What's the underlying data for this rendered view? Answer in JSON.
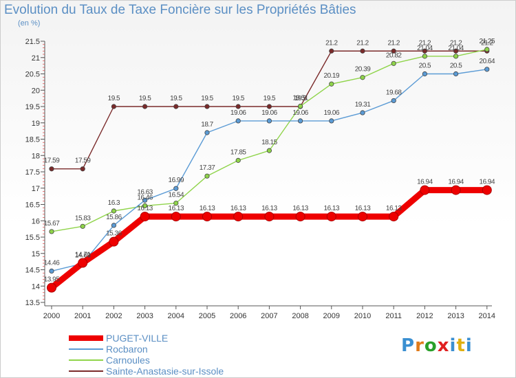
{
  "title": "Evolution du Taux de Taxe Foncière sur les Propriétés Bâties",
  "unit_label": "(en %)",
  "logo": {
    "text": "Proxiti",
    "letters": [
      "P",
      "r",
      "o",
      "x",
      "i",
      "t",
      "i"
    ],
    "colors": [
      "#3a8fd1",
      "#e07b1a",
      "#2aa02a",
      "#e02020",
      "#3a8fd1",
      "#e0b010",
      "#3a8fd1"
    ]
  },
  "chart_data": {
    "type": "line",
    "categories": [
      "2000",
      "2001",
      "2002",
      "2003",
      "2004",
      "2005",
      "2006",
      "2007",
      "2008",
      "2009",
      "2010",
      "2011",
      "2012",
      "2013",
      "2014"
    ],
    "ylim": [
      13.5,
      21.5
    ],
    "yticks": [
      "13.5",
      "14",
      "14.5",
      "15",
      "15.5",
      "16",
      "16.5",
      "17",
      "17.5",
      "18",
      "18.5",
      "19",
      "19.5",
      "20",
      "20.5",
      "21",
      "21.5"
    ],
    "grid": false,
    "legend_position": "bottom-left",
    "series": [
      {
        "name": "PUGET-VILLE",
        "color": "#ee0000",
        "values": [
          13.95,
          14.71,
          15.36,
          16.13,
          16.13,
          16.13,
          16.13,
          16.13,
          16.13,
          16.13,
          16.13,
          16.13,
          16.94,
          16.94,
          16.94
        ],
        "labels": [
          "13.95",
          "14.71",
          "15.36",
          "16.13",
          "16.13",
          "16.13",
          "16.13",
          "16.13",
          "16.13",
          "16.13",
          "16.13",
          "16.13",
          "16.94",
          "16.94",
          "16.94"
        ]
      },
      {
        "name": "Rocbaron",
        "color": "#5b9bd5",
        "values": [
          14.46,
          14.69,
          15.86,
          16.63,
          16.99,
          18.7,
          19.06,
          19.06,
          19.06,
          19.06,
          19.31,
          19.68,
          20.5,
          20.5,
          20.64
        ],
        "labels": [
          "14.46",
          "14.69",
          "15.86",
          "16.63",
          "16.99",
          "18.7",
          "19.06",
          "19.06",
          "19.06",
          "19.06",
          "19.31",
          "19.68",
          "20.5",
          "20.5",
          "20.64"
        ]
      },
      {
        "name": "Carnoules",
        "color": "#8fd44a",
        "values": [
          15.67,
          15.83,
          16.3,
          16.46,
          16.54,
          17.37,
          17.85,
          18.15,
          19.51,
          20.19,
          20.39,
          20.82,
          21.04,
          21.04,
          21.25
        ],
        "labels": [
          "15.67",
          "15.83",
          "16.3",
          "16.46",
          "16.54",
          "17.37",
          "17.85",
          "18.15",
          "19.51",
          "20.19",
          "20.39",
          "20.82",
          "21.04",
          "21.04",
          "21.25"
        ]
      },
      {
        "name": "Sainte-Anastasie-sur-Issole",
        "color": "#7a2a2a",
        "values": [
          17.59,
          17.59,
          19.5,
          19.5,
          19.5,
          19.5,
          19.5,
          19.5,
          19.5,
          21.2,
          21.2,
          21.2,
          21.2,
          21.2,
          21.2
        ],
        "labels": [
          "17.59",
          "17.59",
          "19.5",
          "19.5",
          "19.5",
          "19.5",
          "19.5",
          "19.5",
          "19.5",
          "21.2",
          "21.2",
          "21.2",
          "21.2",
          "21.2",
          "21.2"
        ]
      }
    ]
  }
}
